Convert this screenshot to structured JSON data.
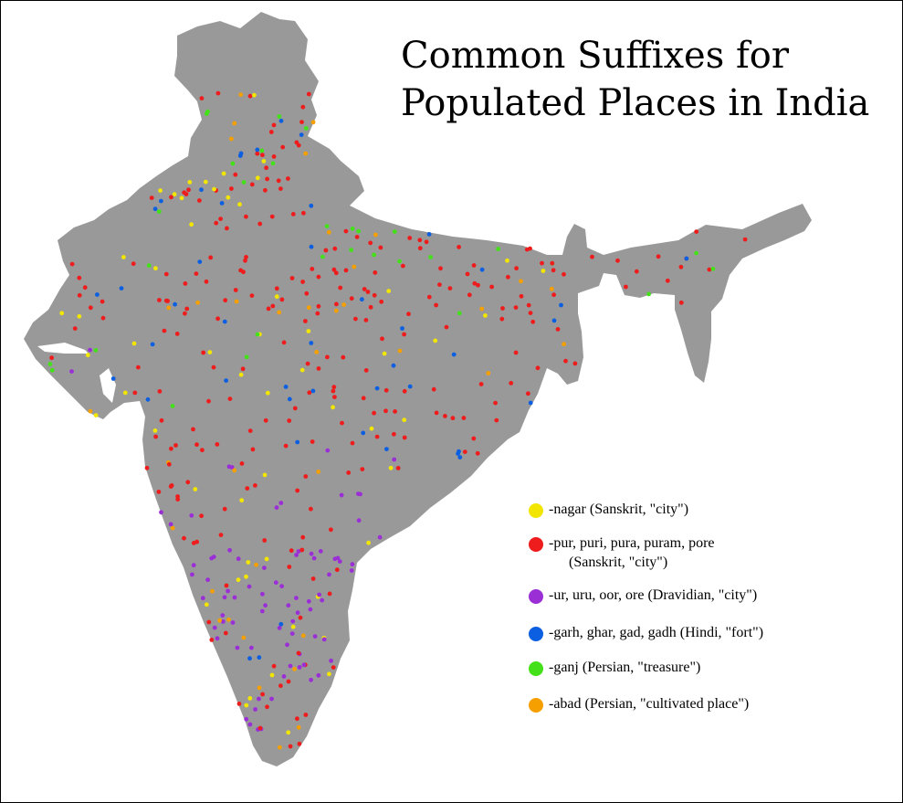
{
  "title": {
    "line1": "Common Suffixes for",
    "line2": "Populated Places in India"
  },
  "colors": {
    "landmass": "#999999",
    "background": "#ffffff",
    "border": "#000000",
    "nagar": "#f2e600",
    "pur": "#ee1c1c",
    "ur": "#9b2fd6",
    "garh": "#0b5fe0",
    "ganj": "#44e01a",
    "abad": "#f5a000"
  },
  "legend": [
    {
      "key": "nagar",
      "line1": "-nagar (Sanskrit, \"city\")",
      "line2": ""
    },
    {
      "key": "pur",
      "line1": "-pur, puri, pura, puram, pore",
      "line2": "(Sanskrit, \"city\")"
    },
    {
      "key": "ur",
      "line1": "-ur, uru, oor, ore (Dravidian, \"city\")",
      "line2": ""
    },
    {
      "key": "garh",
      "line1": "-garh, ghar, gad, gadh (Hindi, \"fort\")",
      "line2": ""
    },
    {
      "key": "ganj",
      "line1": "-ganj (Persian, \"treasure\")",
      "line2": ""
    },
    {
      "key": "abad",
      "line1": "-abad (Persian, \"cultivated place\")",
      "line2": ""
    }
  ]
}
